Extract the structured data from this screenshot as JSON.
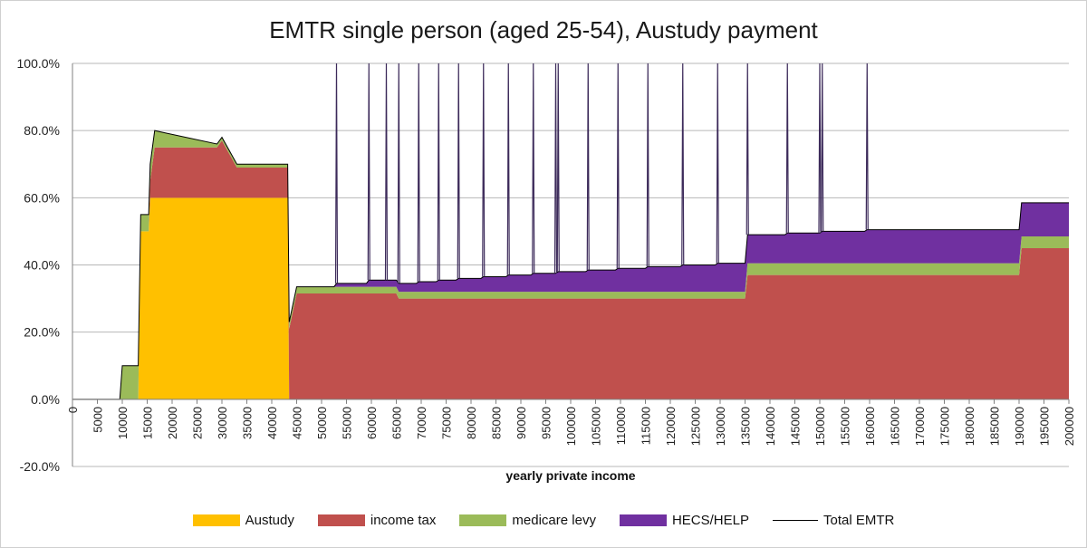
{
  "chart_data": {
    "type": "area",
    "title": "EMTR single person (aged 25-54), Austudy payment",
    "xlabel": "yearly private income",
    "ylabel": "",
    "ylim": [
      -0.2,
      1.0
    ],
    "y_ticks": [
      {
        "value": 1.0,
        "label": "100.0%"
      },
      {
        "value": 0.8,
        "label": "80.0%"
      },
      {
        "value": 0.6,
        "label": "60.0%"
      },
      {
        "value": 0.4,
        "label": "40.0%"
      },
      {
        "value": 0.2,
        "label": "20.0%"
      },
      {
        "value": 0.0,
        "label": "0.0%"
      },
      {
        "value": -0.2,
        "label": "-20.0%"
      }
    ],
    "x_range": [
      0,
      200000
    ],
    "x_tick_labels": [
      "0",
      "5000",
      "10000",
      "15000",
      "20000",
      "25000",
      "30000",
      "35000",
      "40000",
      "45000",
      "50000",
      "55000",
      "60000",
      "65000",
      "70000",
      "75000",
      "80000",
      "85000",
      "90000",
      "95000",
      "100000",
      "105000",
      "110000",
      "115000",
      "120000",
      "125000",
      "130000",
      "135000",
      "140000",
      "145000",
      "150000",
      "155000",
      "160000",
      "165000",
      "170000",
      "175000",
      "180000",
      "185000",
      "190000",
      "195000",
      "200000"
    ],
    "series": [
      {
        "name": "Austudy",
        "color": "#ffc000",
        "points": [
          [
            0,
            0
          ],
          [
            9500,
            0
          ],
          [
            10000,
            0
          ],
          [
            10800,
            0
          ],
          [
            11200,
            0
          ],
          [
            13200,
            0
          ],
          [
            13700,
            0.5
          ],
          [
            15300,
            0.5
          ],
          [
            15600,
            0.6
          ],
          [
            16500,
            0.6
          ],
          [
            43200,
            0.6
          ],
          [
            43500,
            0
          ],
          [
            200000,
            0
          ]
        ]
      },
      {
        "name": "income tax",
        "color": "#c0504d",
        "points": [
          [
            0,
            0
          ],
          [
            9500,
            0
          ],
          [
            10000,
            0
          ],
          [
            10800,
            0
          ],
          [
            11200,
            0
          ],
          [
            13200,
            0
          ],
          [
            13700,
            0
          ],
          [
            15300,
            0
          ],
          [
            15600,
            0.05
          ],
          [
            16500,
            0.15
          ],
          [
            18000,
            0.15
          ],
          [
            29000,
            0.15
          ],
          [
            30000,
            0.17
          ],
          [
            33000,
            0.09
          ],
          [
            43200,
            0.09
          ],
          [
            43500,
            0.21
          ],
          [
            45000,
            0.315
          ],
          [
            65000,
            0.315
          ],
          [
            65500,
            0.3
          ],
          [
            135000,
            0.3
          ],
          [
            135500,
            0.37
          ],
          [
            190000,
            0.37
          ],
          [
            190500,
            0.45
          ],
          [
            200000,
            0.45
          ]
        ]
      },
      {
        "name": "medicare levy",
        "color": "#9bbb59",
        "points": [
          [
            0,
            0
          ],
          [
            9500,
            0
          ],
          [
            10000,
            0.1
          ],
          [
            10800,
            0.1
          ],
          [
            11200,
            0.1
          ],
          [
            13200,
            0.1
          ],
          [
            13700,
            0.05
          ],
          [
            15300,
            0.05
          ],
          [
            15600,
            0.05
          ],
          [
            16500,
            0.05
          ],
          [
            18000,
            0.045
          ],
          [
            29000,
            0.01
          ],
          [
            30000,
            0.01
          ],
          [
            33000,
            0.01
          ],
          [
            43200,
            0.01
          ],
          [
            43500,
            0.02
          ],
          [
            45000,
            0.02
          ],
          [
            65000,
            0.02
          ],
          [
            65500,
            0.02
          ],
          [
            135000,
            0.02
          ],
          [
            135500,
            0.035
          ],
          [
            190000,
            0.035
          ],
          [
            190500,
            0.035
          ],
          [
            200000,
            0.035
          ]
        ]
      },
      {
        "name": "HECS/HELP",
        "color": "#7030a0",
        "points": [
          [
            0,
            0
          ],
          [
            52500,
            0
          ],
          [
            53000,
            0.01
          ],
          [
            59000,
            0.01
          ],
          [
            59500,
            0.02
          ],
          [
            65000,
            0.02
          ],
          [
            65500,
            0.025
          ],
          [
            69000,
            0.025
          ],
          [
            69500,
            0.03
          ],
          [
            73000,
            0.03
          ],
          [
            73500,
            0.035
          ],
          [
            77000,
            0.035
          ],
          [
            77500,
            0.04
          ],
          [
            82000,
            0.04
          ],
          [
            82500,
            0.045
          ],
          [
            87000,
            0.045
          ],
          [
            87500,
            0.05
          ],
          [
            92000,
            0.05
          ],
          [
            92500,
            0.055
          ],
          [
            97000,
            0.055
          ],
          [
            97500,
            0.06
          ],
          [
            103000,
            0.06
          ],
          [
            103500,
            0.065
          ],
          [
            109000,
            0.065
          ],
          [
            109500,
            0.07
          ],
          [
            115000,
            0.07
          ],
          [
            115500,
            0.075
          ],
          [
            122000,
            0.075
          ],
          [
            122500,
            0.08
          ],
          [
            129000,
            0.08
          ],
          [
            129500,
            0.085
          ],
          [
            135000,
            0.085
          ],
          [
            135500,
            0.085
          ],
          [
            143000,
            0.085
          ],
          [
            143500,
            0.09
          ],
          [
            150000,
            0.09
          ],
          [
            150500,
            0.095
          ],
          [
            159000,
            0.095
          ],
          [
            159500,
            0.1
          ],
          [
            190000,
            0.1
          ],
          [
            190500,
            0.1
          ],
          [
            200000,
            0.1
          ]
        ]
      }
    ],
    "total_emtr_spikes": [
      53000,
      59500,
      63000,
      65500,
      69500,
      73500,
      77500,
      82500,
      87500,
      92500,
      97000,
      97500,
      103500,
      109500,
      115500,
      122500,
      129500,
      135500,
      143500,
      150000,
      150500,
      159500
    ],
    "total_emtr_spike_peak": 1.0
  },
  "legend": {
    "austudy_label": "Austudy",
    "income_tax_label": "income tax",
    "medicare_levy_label": "medicare levy",
    "hecs_label": "HECS/HELP",
    "total_label": "Total EMTR"
  }
}
